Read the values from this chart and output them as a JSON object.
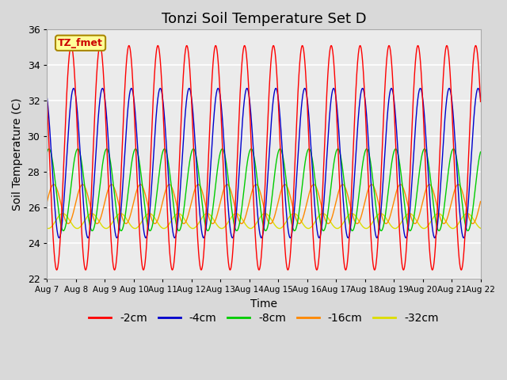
{
  "title": "Tonzi Soil Temperature Set D",
  "xlabel": "Time",
  "ylabel": "Soil Temperature (C)",
  "ylim": [
    22,
    36
  ],
  "yticks": [
    22,
    24,
    26,
    28,
    30,
    32,
    34,
    36
  ],
  "series": [
    {
      "label": "-2cm",
      "color": "#ff0000",
      "amplitude": 6.3,
      "mean": 28.8,
      "phase_hrs": 14.0
    },
    {
      "label": "-4cm",
      "color": "#0000cc",
      "amplitude": 4.2,
      "mean": 28.5,
      "phase_hrs": 16.0
    },
    {
      "label": "-8cm",
      "color": "#00cc00",
      "amplitude": 2.3,
      "mean": 27.0,
      "phase_hrs": 19.5
    },
    {
      "label": "-16cm",
      "color": "#ff8800",
      "amplitude": 1.1,
      "mean": 26.2,
      "phase_hrs": 23.5
    },
    {
      "label": "-32cm",
      "color": "#dddd00",
      "amplitude": 0.42,
      "mean": 25.25,
      "phase_hrs": 31.0
    }
  ],
  "x_start": 0,
  "x_end": 15,
  "n_points": 3600,
  "x_ticks_days": [
    0,
    1,
    2,
    3,
    4,
    5,
    6,
    7,
    8,
    9,
    10,
    11,
    12,
    13,
    14,
    15
  ],
  "x_tick_labels": [
    "Aug 7",
    "Aug 8",
    "Aug 9",
    "Aug 10",
    "Aug 11",
    "Aug 12",
    "Aug 13",
    "Aug 14",
    "Aug 15",
    "Aug 16",
    "Aug 17",
    "Aug 18",
    "Aug 19",
    "Aug 20",
    "Aug 21",
    "Aug 22"
  ],
  "annotation_text": "TZ_fmet",
  "annotation_color": "#cc0000",
  "annotation_bg": "#ffff99",
  "annotation_border": "#aa8800",
  "background_color": "#d9d9d9",
  "plot_bg": "#ebebeb",
  "figsize": [
    6.4,
    4.8
  ],
  "dpi": 100
}
